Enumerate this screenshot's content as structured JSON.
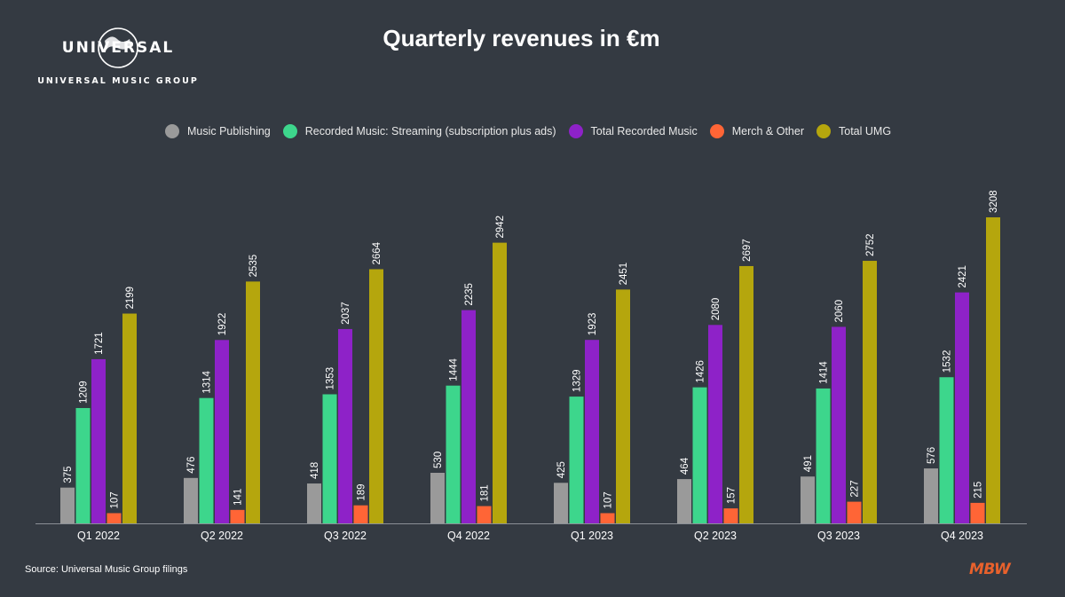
{
  "logo": {
    "wordmark": "UNIVERSAL",
    "subtitle": "UNIVERSAL MUSIC GROUP"
  },
  "chart_data": {
    "type": "bar",
    "title": "Quarterly revenues in €m",
    "categories": [
      "Q1 2022",
      "Q2 2022",
      "Q3 2022",
      "Q4 2022",
      "Q1 2023",
      "Q2 2023",
      "Q3 2023",
      "Q4 2023"
    ],
    "series": [
      {
        "name": "Music Publishing",
        "color": "#9a9a9a",
        "values": [
          375,
          476,
          418,
          530,
          425,
          464,
          491,
          576
        ]
      },
      {
        "name": "Recorded Music: Streaming (subscription plus ads)",
        "color": "#3dd68c",
        "values": [
          1209,
          1314,
          1353,
          1444,
          1329,
          1426,
          1414,
          1532
        ]
      },
      {
        "name": "Total Recorded Music",
        "color": "#8e22c8",
        "values": [
          1721,
          1922,
          2037,
          2235,
          1923,
          2080,
          2060,
          2421
        ]
      },
      {
        "name": "Merch & Other",
        "color": "#ff6536",
        "values": [
          107,
          141,
          189,
          181,
          107,
          157,
          227,
          215
        ]
      },
      {
        "name": "Total UMG",
        "color": "#b5a60d",
        "values": [
          2199,
          2535,
          2664,
          2942,
          2451,
          2697,
          2752,
          3208
        ]
      }
    ],
    "ylim": [
      0,
      3208
    ],
    "legend_position": "top-center",
    "grid": false,
    "data_labels": true
  },
  "source": "Source: Universal Music Group filings",
  "brand": "MBW"
}
